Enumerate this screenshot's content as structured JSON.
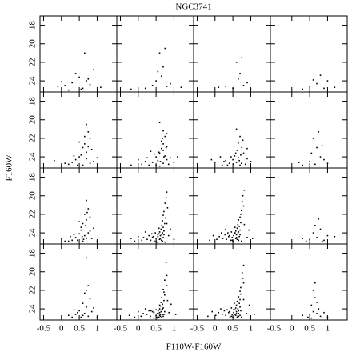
{
  "chart_data": {
    "type": "scatter",
    "title": "NGC3741",
    "xlabel": "F110W-F160W",
    "ylabel": "F160W",
    "xlim": [
      -0.6,
      1.55
    ],
    "ylim": [
      25.2,
      17
    ],
    "xticks": [
      -0.5,
      0,
      0.5,
      1
    ],
    "yticks": [
      18,
      20,
      22,
      24
    ],
    "color": "#000000",
    "panels": [
      {
        "x": [
          0.1,
          0.3,
          0.5,
          0.6,
          0.7,
          0.2,
          -0.1,
          0.4,
          0.8,
          0.9,
          0.55,
          0.65,
          0.0,
          1.1,
          0.75
        ],
        "y": [
          24.5,
          24.2,
          23.6,
          24.8,
          24.0,
          25.0,
          24.6,
          23.2,
          24.4,
          22.8,
          24.9,
          21.0,
          24.1,
          24.7,
          23.8
        ]
      },
      {
        "x": [
          0.6,
          0.7,
          0.5,
          0.8,
          0.2,
          0.65,
          0.9,
          -0.2,
          0.4,
          0.75,
          1.2,
          0.55
        ],
        "y": [
          21.0,
          22.5,
          24.0,
          24.6,
          24.8,
          23.5,
          24.3,
          24.9,
          24.5,
          20.5,
          24.7,
          23.0
        ]
      },
      {
        "x": [
          0.6,
          0.7,
          0.8,
          0.5,
          0.3,
          0.9,
          0.65,
          1.0,
          0.1,
          0.75
        ],
        "y": [
          22.0,
          23.2,
          24.5,
          24.8,
          24.6,
          24.2,
          23.8,
          24.9,
          24.7,
          21.5
        ]
      },
      {
        "x": [
          0.5,
          0.7,
          0.8,
          0.9,
          1.0,
          0.3,
          0.6,
          1.2
        ],
        "y": [
          24.6,
          24.3,
          23.4,
          24.8,
          24.0,
          24.9,
          23.9,
          24.7
        ]
      },
      {
        "x": [
          0.7,
          0.75,
          0.8,
          0.65,
          0.6,
          0.7,
          0.5,
          0.4,
          0.3,
          0.2,
          0.85,
          0.9,
          0.6,
          0.55,
          0.7,
          0.75,
          0.1,
          0.0,
          -0.2,
          0.45,
          0.65,
          1.0,
          0.8,
          0.5,
          0.35
        ],
        "y": [
          20.5,
          21.3,
          22.0,
          22.6,
          23.0,
          23.5,
          24.0,
          24.3,
          24.6,
          24.8,
          23.2,
          24.5,
          24.9,
          23.8,
          24.2,
          22.9,
          24.7,
          25.0,
          24.4,
          24.9,
          21.8,
          24.1,
          24.7,
          22.4,
          23.9
        ]
      },
      {
        "x": [
          0.6,
          0.7,
          0.75,
          0.65,
          0.8,
          0.7,
          0.6,
          0.5,
          0.55,
          0.7,
          0.75,
          0.8,
          0.85,
          0.9,
          0.4,
          0.3,
          0.2,
          0.1,
          0.0,
          -0.2,
          0.6,
          0.65,
          0.45,
          0.5,
          0.7,
          0.8,
          1.0,
          1.1,
          0.35,
          0.25,
          0.62,
          0.72,
          0.58,
          0.68,
          0.78
        ],
        "y": [
          20.3,
          21.2,
          21.8,
          22.3,
          22.9,
          23.3,
          23.6,
          24.0,
          24.4,
          24.7,
          23.9,
          24.3,
          24.8,
          24.1,
          24.6,
          24.9,
          24.5,
          24.8,
          24.3,
          24.9,
          25.0,
          23.1,
          23.7,
          24.9,
          22.6,
          21.5,
          24.6,
          24.0,
          23.4,
          24.1,
          24.5,
          24.0,
          23.5,
          22.0,
          23.0
        ]
      },
      {
        "x": [
          0.6,
          0.7,
          0.65,
          0.75,
          0.8,
          0.55,
          0.5,
          0.6,
          0.7,
          0.4,
          0.3,
          0.2,
          0.9,
          0.85,
          0.0,
          -0.1,
          0.45,
          0.62,
          0.72,
          0.68,
          0.52,
          0.78,
          1.0,
          0.35,
          0.58,
          0.66,
          0.74,
          0.25,
          0.15,
          0.9
        ],
        "y": [
          21.0,
          21.8,
          22.5,
          23.0,
          23.6,
          23.9,
          24.3,
          24.6,
          24.9,
          24.7,
          24.4,
          24.9,
          24.2,
          24.8,
          24.6,
          24.3,
          24.0,
          23.3,
          23.8,
          24.4,
          24.8,
          22.2,
          24.5,
          24.9,
          23.6,
          24.1,
          24.7,
          24.5,
          24.0,
          23.1
        ]
      },
      {
        "x": [
          0.6,
          0.7,
          0.8,
          0.5,
          0.65,
          0.9,
          0.3,
          0.75,
          1.0,
          0.55,
          0.2,
          0.85
        ],
        "y": [
          22.0,
          23.0,
          24.0,
          24.5,
          24.8,
          24.3,
          24.9,
          21.3,
          24.7,
          23.6,
          24.6,
          22.8
        ]
      },
      {
        "x": [
          0.7,
          0.75,
          0.65,
          0.7,
          0.6,
          0.55,
          0.8,
          0.5,
          0.4,
          0.3,
          0.2,
          0.65,
          0.7,
          0.6,
          0.75,
          0.85,
          0.9,
          0.45,
          0.35,
          0.1,
          0.0,
          0.5,
          0.68,
          0.58,
          0.72,
          0.62,
          1.0,
          0.25,
          0.8,
          0.55
        ],
        "y": [
          20.5,
          21.4,
          22.0,
          22.6,
          23.0,
          23.4,
          23.8,
          24.1,
          24.5,
          24.8,
          24.9,
          24.3,
          24.6,
          24.9,
          24.0,
          24.6,
          23.5,
          24.8,
          24.2,
          24.9,
          24.6,
          22.8,
          23.2,
          24.4,
          21.8,
          24.7,
          24.9,
          24.4,
          22.3,
          23.7
        ]
      },
      {
        "x": [
          0.8,
          0.78,
          0.75,
          0.82,
          0.72,
          0.7,
          0.76,
          0.68,
          0.74,
          0.66,
          0.7,
          0.64,
          0.72,
          0.6,
          0.68,
          0.58,
          0.66,
          0.62,
          0.55,
          0.7,
          0.5,
          0.6,
          0.65,
          0.45,
          0.75,
          0.4,
          0.55,
          0.35,
          0.62,
          0.3,
          0.5,
          0.25,
          0.2,
          0.15,
          0.1,
          0.0,
          -0.1,
          -0.2,
          0.85,
          0.9,
          1.0,
          0.8,
          0.58,
          0.48,
          0.42,
          0.68,
          0.52,
          0.38,
          0.6,
          0.72
        ],
        "y": [
          19.6,
          20.2,
          20.8,
          21.3,
          21.7,
          22.1,
          22.4,
          22.7,
          23.0,
          23.2,
          23.4,
          23.6,
          23.8,
          23.9,
          24.0,
          24.1,
          24.2,
          24.3,
          24.4,
          24.5,
          24.6,
          24.7,
          24.8,
          24.9,
          25.0,
          24.5,
          24.2,
          24.8,
          24.6,
          24.3,
          24.9,
          24.7,
          23.9,
          24.5,
          24.8,
          24.4,
          24.9,
          24.6,
          24.3,
          23.6,
          24.7,
          23.0,
          23.5,
          24.0,
          24.4,
          24.9,
          25.0,
          24.1,
          24.7,
          24.2
        ]
      },
      {
        "x": [
          0.82,
          0.78,
          0.76,
          0.8,
          0.74,
          0.72,
          0.7,
          0.66,
          0.72,
          0.64,
          0.68,
          0.62,
          0.7,
          0.58,
          0.66,
          0.56,
          0.64,
          0.6,
          0.52,
          0.68,
          0.48,
          0.58,
          0.62,
          0.44,
          0.74,
          0.38,
          0.54,
          0.32,
          0.6,
          0.28,
          0.48,
          0.22,
          0.18,
          0.12,
          0.05,
          -0.05,
          -0.15,
          0.9,
          0.95,
          1.05,
          0.82,
          0.56,
          0.46,
          0.4,
          0.66,
          0.5,
          0.36,
          0.58,
          0.7,
          0.3
        ],
        "y": [
          19.4,
          20.0,
          20.6,
          21.1,
          21.6,
          22.0,
          22.3,
          22.6,
          22.9,
          23.1,
          23.3,
          23.5,
          23.7,
          23.8,
          23.9,
          24.0,
          24.1,
          24.2,
          24.3,
          24.4,
          24.5,
          24.6,
          24.7,
          24.8,
          24.9,
          24.4,
          24.1,
          24.7,
          24.5,
          24.2,
          24.8,
          24.6,
          24.0,
          24.4,
          24.7,
          24.3,
          24.8,
          24.5,
          23.7,
          24.6,
          23.1,
          23.4,
          23.9,
          24.3,
          24.8,
          24.9,
          24.0,
          24.6,
          24.2,
          23.6
        ]
      },
      {
        "x": [
          0.6,
          0.7,
          0.8,
          0.9,
          0.5,
          0.65,
          0.4,
          1.0,
          0.75,
          0.3,
          0.85,
          1.2
        ],
        "y": [
          24.0,
          24.5,
          23.6,
          24.8,
          24.7,
          23.2,
          24.9,
          24.3,
          22.5,
          24.6,
          24.9,
          24.4
        ]
      },
      {
        "x": [
          0.7,
          0.75,
          0.65,
          0.8,
          0.6,
          0.7,
          0.5,
          0.4,
          0.3,
          0.65,
          0.75,
          0.85,
          0.55,
          0.2,
          0.9,
          0.45,
          0.7,
          0.6,
          1.0,
          0.35
        ],
        "y": [
          18.5,
          21.5,
          22.3,
          22.9,
          23.4,
          23.8,
          24.2,
          24.6,
          24.9,
          24.5,
          24.8,
          24.3,
          24.9,
          24.7,
          23.9,
          24.4,
          22.0,
          24.7,
          24.9,
          24.1
        ]
      },
      {
        "x": [
          0.78,
          0.8,
          0.74,
          0.8,
          0.7,
          0.72,
          0.74,
          0.66,
          0.72,
          0.64,
          0.68,
          0.62,
          0.7,
          0.6,
          0.66,
          0.56,
          0.64,
          0.6,
          0.54,
          0.68,
          0.5,
          0.62,
          0.66,
          0.44,
          0.72,
          0.4,
          0.56,
          0.34,
          0.6,
          0.3,
          0.52,
          0.24,
          0.2,
          0.14,
          0.08,
          0.0,
          -0.1,
          -0.25,
          0.86,
          0.92,
          1.05,
          0.82,
          0.6,
          0.5,
          0.44,
          0.7,
          0.54,
          0.36,
          0.62,
          0.74,
          0.58,
          0.68
        ],
        "y": [
          19.0,
          20.4,
          20.9,
          21.5,
          21.9,
          22.2,
          22.5,
          22.8,
          23.1,
          23.3,
          23.5,
          23.7,
          23.9,
          24.0,
          24.1,
          24.2,
          24.3,
          24.4,
          24.5,
          24.6,
          24.7,
          24.8,
          24.9,
          25.0,
          24.6,
          24.3,
          24.5,
          24.8,
          24.7,
          24.2,
          24.9,
          24.6,
          24.0,
          24.5,
          24.8,
          24.3,
          24.9,
          24.7,
          24.4,
          23.5,
          24.6,
          23.1,
          23.6,
          24.1,
          24.4,
          24.8,
          25.0,
          24.2,
          24.6,
          24.3,
          24.9,
          24.0
        ]
      },
      {
        "x": [
          0.8,
          0.76,
          0.78,
          0.8,
          0.72,
          0.7,
          0.72,
          0.66,
          0.7,
          0.62,
          0.68,
          0.6,
          0.7,
          0.58,
          0.64,
          0.56,
          0.66,
          0.6,
          0.52,
          0.66,
          0.48,
          0.58,
          0.64,
          0.42,
          0.74,
          0.38,
          0.52,
          0.3,
          0.6,
          0.26,
          0.46,
          0.2,
          0.16,
          0.1,
          0.02,
          -0.08,
          -0.2,
          0.88,
          0.96,
          1.1,
          0.8,
          0.54,
          0.46,
          0.4,
          0.66,
          0.5,
          0.34,
          0.56,
          0.72,
          0.62,
          0.7
        ],
        "y": [
          19.3,
          20.1,
          20.7,
          21.2,
          21.7,
          22.1,
          22.4,
          22.7,
          23.0,
          23.2,
          23.4,
          23.6,
          23.8,
          23.9,
          24.0,
          24.1,
          24.2,
          24.3,
          24.4,
          24.5,
          24.6,
          24.7,
          24.8,
          24.9,
          24.9,
          24.4,
          24.1,
          24.7,
          24.5,
          24.2,
          24.8,
          24.6,
          24.0,
          24.4,
          24.7,
          24.3,
          24.8,
          24.5,
          23.6,
          24.6,
          23.0,
          23.4,
          23.9,
          24.3,
          24.8,
          24.9,
          24.1,
          24.6,
          24.2,
          24.9,
          24.7
        ]
      },
      {
        "x": [
          0.6,
          0.65,
          0.7,
          0.55,
          0.75,
          0.6,
          0.5,
          0.8,
          0.45,
          0.7,
          0.9,
          0.3,
          0.65,
          0.55,
          1.0
        ],
        "y": [
          22.0,
          22.8,
          23.3,
          23.6,
          24.0,
          24.3,
          24.6,
          24.8,
          24.9,
          24.5,
          24.4,
          24.7,
          21.2,
          25.0,
          24.9
        ]
      }
    ]
  }
}
